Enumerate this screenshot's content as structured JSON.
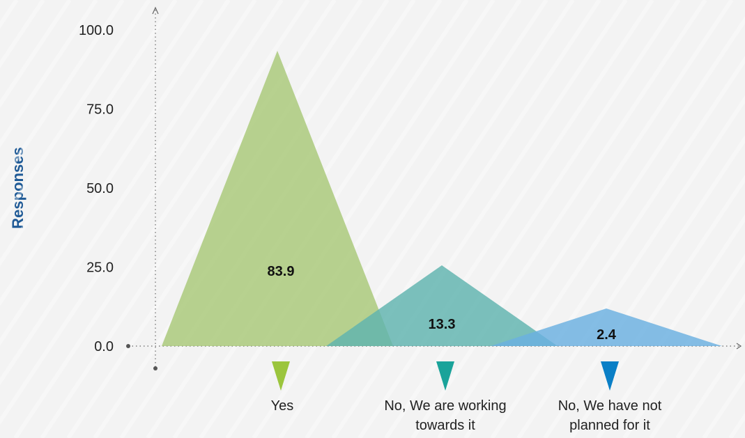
{
  "chart_data": {
    "type": "bar",
    "title": "",
    "xlabel": "",
    "ylabel": "Responses",
    "ylim": [
      0,
      100
    ],
    "yticks": [
      "0.0",
      "25.0",
      "50.0",
      "75.0",
      "100.0"
    ],
    "grid": false,
    "categories": [
      {
        "lines": [
          "Yes"
        ],
        "color": "#9bc53d",
        "fill": "#a8c878"
      },
      {
        "lines": [
          "No, We are working",
          "towards it"
        ],
        "color": "#1aa39a",
        "fill": "#5fb3ae"
      },
      {
        "lines": [
          "No, We have not",
          "planned for it"
        ],
        "color": "#0a7fc6",
        "fill": "#6ab0e0"
      }
    ],
    "values": [
      83.9,
      13.3,
      2.4
    ],
    "value_labels": [
      "83.9",
      "13.3",
      "2.4"
    ]
  }
}
